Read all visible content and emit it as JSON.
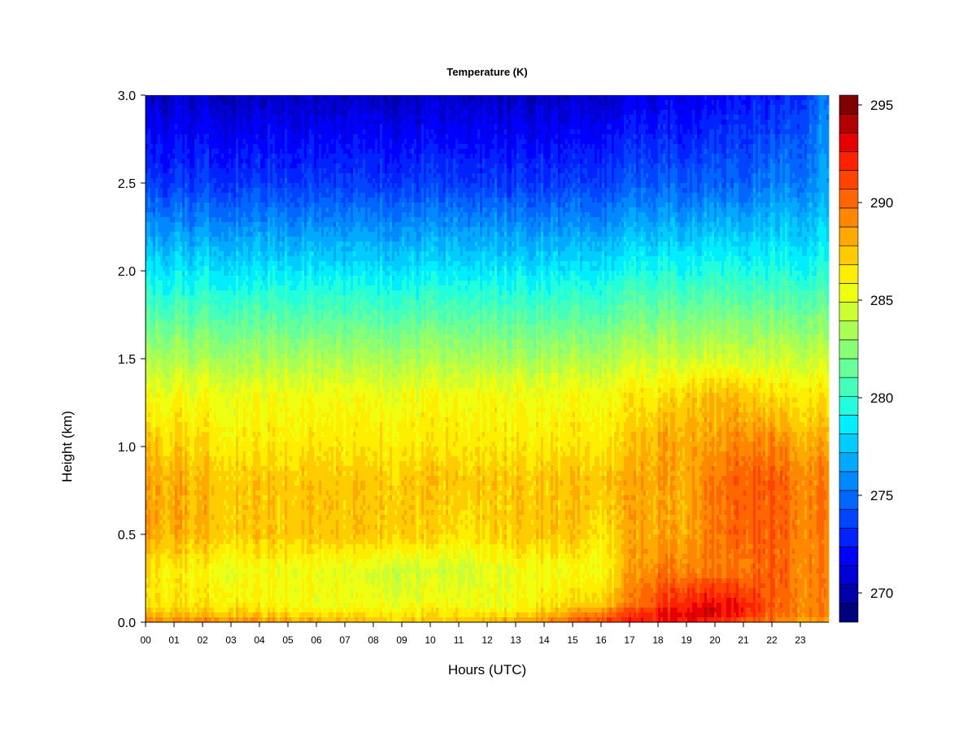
{
  "chart_data": {
    "type": "heatmap",
    "title": "Temperature (K)",
    "xlabel": "Hours (UTC)",
    "ylabel": "Height (km)",
    "x_ticks": [
      "00",
      "01",
      "02",
      "03",
      "04",
      "05",
      "06",
      "07",
      "08",
      "09",
      "10",
      "11",
      "12",
      "13",
      "14",
      "15",
      "16",
      "17",
      "18",
      "19",
      "20",
      "21",
      "22",
      "23"
    ],
    "xlim": [
      0,
      24
    ],
    "y_ticks": [
      "0.0",
      "0.5",
      "1.0",
      "1.5",
      "2.0",
      "2.5",
      "3.0"
    ],
    "ylim": [
      0,
      3.0
    ],
    "colorbar": {
      "ticks": [
        "270",
        "275",
        "280",
        "285",
        "290",
        "295"
      ],
      "range": [
        269,
        296
      ],
      "step": 1,
      "colors": [
        "#00007f",
        "#0000a8",
        "#0000d4",
        "#0000ff",
        "#0022ff",
        "#0044ff",
        "#0066ff",
        "#0088ff",
        "#00aaff",
        "#00ccff",
        "#00eeff",
        "#22ffdd",
        "#44ffbb",
        "#66ff99",
        "#88ff77",
        "#aaff55",
        "#ccff33",
        "#eeff11",
        "#ffee00",
        "#ffcc00",
        "#ffaa00",
        "#ff8800",
        "#ff6600",
        "#ff4400",
        "#ff2200",
        "#e60000",
        "#b00000",
        "#7f0000"
      ]
    },
    "grid": false,
    "z_description_hours": [
      0,
      3,
      6,
      9,
      11,
      13,
      14,
      15,
      16,
      17,
      18,
      19,
      20,
      21,
      22,
      23,
      24
    ],
    "z_levels_km": [
      0.0,
      0.05,
      0.1,
      0.3,
      0.5,
      0.8,
      1.0,
      1.3,
      1.5,
      2.0,
      2.5,
      3.0
    ],
    "z_values_K": [
      [
        290,
        290,
        289,
        288,
        288,
        289,
        290,
        291,
        292,
        293,
        293,
        293,
        292,
        291,
        290,
        289,
        289
      ],
      [
        288,
        288,
        287,
        287,
        287,
        287,
        288,
        289,
        290,
        292,
        293,
        294,
        294,
        293,
        291,
        290,
        290
      ],
      [
        287,
        287,
        286,
        286,
        286,
        286,
        287,
        287,
        288,
        290,
        292,
        293,
        293,
        293,
        291,
        290,
        290
      ],
      [
        287,
        286,
        286,
        285,
        285,
        286,
        286,
        286,
        286,
        289,
        290,
        290,
        290,
        290,
        291,
        290,
        290
      ],
      [
        289,
        288,
        288,
        288,
        287,
        288,
        288,
        288,
        287,
        289,
        289,
        289,
        290,
        291,
        291,
        290,
        290
      ],
      [
        289,
        288,
        288,
        288,
        288,
        288,
        288,
        288,
        288,
        289,
        289,
        289,
        290,
        291,
        291,
        290,
        290
      ],
      [
        288,
        287,
        287,
        287,
        287,
        287,
        287,
        287,
        287,
        288,
        289,
        289,
        289,
        290,
        290,
        289,
        289
      ],
      [
        286,
        286,
        286,
        286,
        286,
        286,
        286,
        286,
        286,
        287,
        287,
        288,
        288,
        288,
        287,
        287,
        287
      ],
      [
        284,
        284,
        284,
        284,
        284,
        284,
        284,
        284,
        284,
        285,
        285,
        285,
        285,
        285,
        285,
        285,
        285
      ],
      [
        279,
        279,
        279,
        279,
        279,
        279,
        279,
        279,
        279,
        280,
        280,
        280,
        280,
        280,
        280,
        280,
        280
      ],
      [
        274,
        274,
        274,
        274,
        274,
        274,
        274,
        274,
        274,
        275,
        275,
        275,
        275,
        275,
        276,
        276,
        277
      ],
      [
        271,
        271,
        271,
        271,
        271,
        271,
        271,
        271,
        271,
        272,
        272,
        272,
        272,
        273,
        273,
        274,
        276
      ]
    ]
  }
}
